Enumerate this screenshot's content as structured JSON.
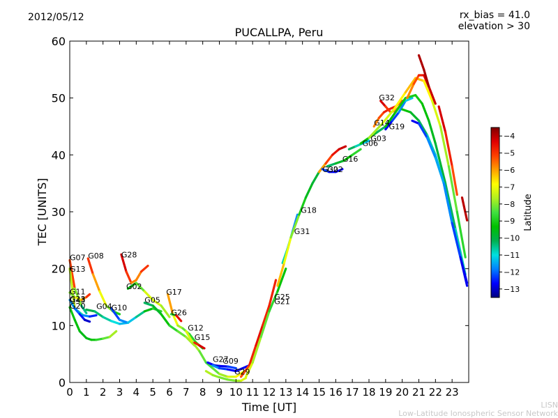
{
  "header": {
    "date": "2012/05/12",
    "title": "PUCALLPA, Peru",
    "rx_bias": "rx_bias = 41.0",
    "elevation": "elevation > 30"
  },
  "credit": {
    "line1": "LISN",
    "line2": "Low-Latitude Ionospheric Sensor Network"
  },
  "chart_data": {
    "type": "scatter",
    "xlabel": "Time [UT]",
    "ylabel": "TEC [UNITS]",
    "xlim": [
      0,
      24
    ],
    "ylim": [
      0,
      60
    ],
    "xticks": [
      0,
      1,
      2,
      3,
      4,
      5,
      6,
      7,
      8,
      9,
      10,
      11,
      12,
      13,
      14,
      15,
      16,
      17,
      18,
      19,
      20,
      21,
      22,
      23
    ],
    "yticks": [
      0,
      10,
      20,
      30,
      40,
      50,
      60
    ],
    "colorbar": {
      "label": "Latitude",
      "range": [
        -13.5,
        -3.5
      ],
      "ticks": [
        -4,
        -5,
        -6,
        -7,
        -8,
        -9,
        -10,
        -11,
        -12,
        -13
      ],
      "colormap": [
        "#00007f",
        "#0000ff",
        "#0080ff",
        "#00e0e0",
        "#00b050",
        "#00c000",
        "#40e040",
        "#b0f020",
        "#ffff00",
        "#ffa000",
        "#ff4000",
        "#e00000",
        "#800000"
      ]
    },
    "series": [
      {
        "name": "G07",
        "x": [
          0.0,
          0.3,
          0.7,
          1.0
        ],
        "y": [
          21.5,
          16.5,
          13.5,
          12.2
        ],
        "lat": [
          -3.8,
          -6.5,
          -9.5,
          -11.5
        ]
      },
      {
        "name": "G13",
        "x": [
          0.0,
          0.3,
          0.8,
          1.2,
          1.6
        ],
        "y": [
          20.0,
          13.0,
          11.8,
          11.6,
          11.8
        ],
        "lat": [
          -5.0,
          -10.0,
          -11.5,
          -12.0,
          -12.8
        ]
      },
      {
        "name": "G11",
        "x": [
          0.0,
          0.3,
          0.7,
          1.0,
          1.2
        ],
        "y": [
          15.8,
          15.0,
          14.5,
          15.0,
          15.5
        ],
        "lat": [
          -8.5,
          -7.5,
          -6.5,
          -5.5,
          -4.5
        ]
      },
      {
        "name": "G23",
        "x": [
          0.0,
          0.3,
          0.6,
          0.9,
          1.2
        ],
        "y": [
          14.5,
          13.0,
          12.0,
          11.0,
          10.7
        ],
        "lat": [
          -11.5,
          -11.8,
          -12.2,
          -12.8,
          -13.2
        ]
      },
      {
        "name": "G20",
        "x": [
          0.0,
          0.3,
          0.6,
          1.0,
          1.3,
          1.6,
          2.0,
          2.4,
          2.8
        ],
        "y": [
          13.2,
          11.0,
          9.0,
          7.8,
          7.5,
          7.5,
          7.7,
          8.0,
          9.0
        ],
        "lat": [
          -9.0,
          -9.3,
          -9.5,
          -9.6,
          -9.5,
          -9.0,
          -8.5,
          -8.0,
          -7.5
        ]
      },
      {
        "name": "G08",
        "x": [
          1.1,
          1.4,
          1.8,
          2.2,
          2.6,
          3.0
        ],
        "y": [
          21.8,
          19.0,
          16.0,
          13.5,
          12.5,
          12.0
        ],
        "lat": [
          -4.5,
          -5.5,
          -6.5,
          -7.5,
          -8.5,
          -9.5
        ]
      },
      {
        "name": "G04",
        "x": [
          1.0,
          1.5,
          2.0,
          2.5,
          3.0,
          3.5
        ],
        "y": [
          12.8,
          12.5,
          11.5,
          10.8,
          10.3,
          10.5
        ],
        "lat": [
          -10.0,
          -10.2,
          -10.5,
          -10.8,
          -11.2,
          -11.5
        ]
      },
      {
        "name": "G10",
        "x": [
          2.5,
          3.0,
          3.5,
          4.0,
          4.5,
          5.0,
          5.5
        ],
        "y": [
          13.0,
          11.0,
          10.5,
          11.5,
          12.5,
          13.0,
          12.5
        ],
        "lat": [
          -12.5,
          -12.0,
          -11.5,
          -11.0,
          -10.0,
          -9.0,
          -8.5
        ]
      },
      {
        "name": "G28",
        "x": [
          3.1,
          3.4,
          3.7,
          4.0,
          4.3,
          4.7
        ],
        "y": [
          22.5,
          19.5,
          17.5,
          18.0,
          19.5,
          20.5
        ],
        "lat": [
          -4.0,
          -4.5,
          -5.5,
          -6.0,
          -5.5,
          -4.5
        ]
      },
      {
        "name": "G02",
        "x": [
          3.5,
          4.0,
          4.5,
          5.0,
          5.5,
          6.0
        ],
        "y": [
          16.5,
          17.5,
          16.0,
          14.5,
          13.5,
          11.5
        ],
        "lat": [
          -10.0,
          -9.0,
          -7.5,
          -7.0,
          -7.5,
          -8.0
        ]
      },
      {
        "name": "G05",
        "x": [
          4.5,
          5.0,
          5.5,
          6.0,
          6.5,
          7.0,
          7.5
        ],
        "y": [
          14.0,
          13.5,
          12.0,
          10.0,
          9.0,
          8.0,
          6.5
        ],
        "lat": [
          -10.5,
          -10.0,
          -9.5,
          -9.0,
          -8.5,
          -8.0,
          -7.5
        ]
      },
      {
        "name": "G17",
        "x": [
          5.9,
          6.2,
          6.5,
          6.8,
          7.2,
          7.6,
          8.0
        ],
        "y": [
          15.5,
          12.0,
          10.0,
          9.5,
          8.5,
          7.0,
          6.0
        ],
        "lat": [
          -5.5,
          -6.5,
          -7.5,
          -8.0,
          -8.5,
          -9.0,
          -9.5
        ]
      },
      {
        "name": "G26",
        "x": [
          6.1,
          6.4,
          6.7
        ],
        "y": [
          12.0,
          11.8,
          10.8
        ],
        "lat": [
          -12.5,
          -5.0,
          -4.0
        ]
      },
      {
        "name": "G12",
        "x": [
          7.0,
          7.4,
          7.8,
          8.2,
          8.6,
          9.0,
          9.5,
          10.0,
          10.5
        ],
        "y": [
          9.0,
          7.0,
          5.5,
          3.5,
          2.5,
          1.5,
          1.0,
          1.0,
          2.0
        ],
        "lat": [
          -7.0,
          -7.5,
          -8.0,
          -8.5,
          -8.5,
          -8.0,
          -7.5,
          -7.0,
          -6.5
        ]
      },
      {
        "name": "G15",
        "x": [
          7.5,
          7.8,
          8.1
        ],
        "y": [
          7.0,
          6.5,
          6.0
        ],
        "lat": [
          -5.0,
          -4.5,
          -4.0
        ]
      },
      {
        "name": "G27",
        "x": [
          8.3,
          8.7,
          9.0,
          9.5,
          10.0
        ],
        "y": [
          3.5,
          3.0,
          2.9,
          2.8,
          2.5
        ],
        "lat": [
          -12.5,
          -12.8,
          -13.0,
          -12.5,
          -12.0
        ]
      },
      {
        "name": "G09",
        "x": [
          8.6,
          9.0,
          9.5,
          10.0,
          10.4,
          10.8
        ],
        "y": [
          3.0,
          2.5,
          2.3,
          2.0,
          2.5,
          3.0
        ],
        "lat": [
          -11.5,
          -12.0,
          -12.5,
          -12.8,
          -13.0,
          -12.5
        ]
      },
      {
        "name": "G29",
        "x": [
          8.2,
          8.6,
          9.0,
          9.5,
          10.0,
          10.3,
          10.6
        ],
        "y": [
          2.0,
          1.3,
          0.9,
          0.5,
          0.3,
          0.3,
          0.8
        ],
        "lat": [
          -7.5,
          -7.8,
          -8.0,
          -8.2,
          -8.0,
          -7.5,
          -7.0
        ]
      },
      {
        "name": "G25",
        "x": [
          10.3,
          10.8,
          11.2,
          11.6,
          12.0,
          12.4
        ],
        "y": [
          1.0,
          3.0,
          6.5,
          10.0,
          13.5,
          18.0
        ],
        "lat": [
          -5.5,
          -5.0,
          -4.5,
          -4.5,
          -5.0,
          -4.5
        ]
      },
      {
        "name": "G21",
        "x": [
          10.6,
          11.0,
          11.5,
          12.0,
          12.5,
          13.0
        ],
        "y": [
          1.0,
          3.5,
          8.0,
          12.5,
          16.0,
          20.0
        ],
        "lat": [
          -7.0,
          -7.5,
          -8.0,
          -8.5,
          -9.0,
          -9.5
        ]
      },
      {
        "name": "G31",
        "x": [
          12.8,
          13.1,
          13.4,
          13.7
        ],
        "y": [
          21.0,
          23.5,
          26.5,
          29.5
        ],
        "lat": [
          -10.5,
          -11.0,
          -11.5,
          -12.0
        ]
      },
      {
        "name": "G18",
        "x": [
          12.5,
          12.9,
          13.3,
          13.8,
          14.2,
          14.6,
          15.0,
          15.4
        ],
        "y": [
          17.0,
          21.0,
          25.5,
          29.5,
          32.5,
          35.0,
          37.0,
          38.5
        ],
        "lat": [
          -6.0,
          -6.5,
          -7.5,
          -8.5,
          -9.5,
          -9.8,
          -10.0,
          -10.2
        ]
      },
      {
        "name": "G30",
        "x": [
          15.0,
          15.4,
          15.8,
          16.2,
          16.6
        ],
        "y": [
          37.0,
          38.5,
          40.0,
          41.0,
          41.5
        ],
        "lat": [
          -6.5,
          -5.5,
          -4.8,
          -4.3,
          -4.0
        ]
      },
      {
        "name": "G22",
        "x": [
          15.2,
          15.6,
          16.0,
          16.4
        ],
        "y": [
          37.5,
          37.0,
          37.0,
          37.5
        ],
        "lat": [
          -12.0,
          -12.5,
          -12.8,
          -12.5
        ]
      },
      {
        "name": "G16",
        "x": [
          15.5,
          16.0,
          16.5,
          17.0,
          17.5
        ],
        "y": [
          38.0,
          38.5,
          39.0,
          40.0,
          41.0
        ],
        "lat": [
          -10.5,
          -10.0,
          -9.5,
          -9.0,
          -8.5
        ]
      },
      {
        "name": "G06",
        "x": [
          16.8,
          17.2,
          17.6,
          18.0
        ],
        "y": [
          41.0,
          41.5,
          42.0,
          42.5
        ],
        "lat": [
          -10.0,
          -10.5,
          -11.0,
          -11.5
        ]
      },
      {
        "name": "G03",
        "x": [
          17.5,
          18.0,
          18.5,
          19.0
        ],
        "y": [
          42.0,
          43.0,
          44.0,
          45.0
        ],
        "lat": [
          -9.0,
          -9.5,
          -10.0,
          -10.5
        ]
      },
      {
        "name": "G14",
        "x": [
          18.3,
          18.6,
          18.9,
          19.2,
          19.6,
          20.0
        ],
        "y": [
          45.0,
          46.5,
          47.5,
          48.0,
          48.5,
          49.5
        ],
        "lat": [
          -6.0,
          -5.5,
          -5.0,
          -4.5,
          -5.0,
          -5.5
        ]
      },
      {
        "name": "G32",
        "x": [
          18.7,
          19.0,
          19.3,
          19.6,
          20.0
        ],
        "y": [
          49.5,
          48.5,
          47.5,
          47.8,
          49.0
        ],
        "lat": [
          -4.0,
          -4.5,
          -5.5,
          -6.0,
          -5.5
        ]
      },
      {
        "name": "G19",
        "x": [
          19.0,
          19.4,
          19.8,
          20.2,
          20.6
        ],
        "y": [
          44.5,
          46.0,
          47.5,
          49.5,
          50.0
        ],
        "lat": [
          -13.0,
          -12.5,
          -12.0,
          -11.5,
          -11.0
        ]
      },
      {
        "name": "",
        "x": [
          18.0,
          18.8,
          19.5,
          20.2,
          20.8,
          21.3,
          21.8,
          22.3,
          22.8,
          23.3,
          23.8
        ],
        "y": [
          43.0,
          45.5,
          48.0,
          51.0,
          53.5,
          53.0,
          49.5,
          45.0,
          38.0,
          30.0,
          22.0
        ],
        "lat": [
          -8.0,
          -7.5,
          -7.0,
          -6.5,
          -6.0,
          -6.5,
          -7.0,
          -7.5,
          -8.0,
          -8.5,
          -9.0
        ]
      },
      {
        "name": "",
        "x": [
          19.0,
          19.6,
          20.2,
          20.8,
          21.2,
          21.6,
          22.0,
          22.6,
          23.2,
          23.8
        ],
        "y": [
          45.0,
          47.5,
          50.0,
          50.5,
          49.0,
          46.0,
          42.0,
          35.0,
          27.0,
          19.0
        ],
        "lat": [
          -9.5,
          -9.3,
          -9.0,
          -9.0,
          -9.2,
          -9.5,
          -9.8,
          -10.0,
          -10.5,
          -11.0
        ]
      },
      {
        "name": "",
        "x": [
          20.0,
          20.5,
          21.0,
          21.5,
          22.0,
          22.5,
          23.0,
          23.5,
          23.9
        ],
        "y": [
          48.0,
          47.5,
          46.0,
          43.5,
          40.0,
          35.0,
          28.0,
          22.0,
          17.5
        ],
        "lat": [
          -9.0,
          -9.5,
          -10.0,
          -10.5,
          -11.0,
          -11.5,
          -12.0,
          -12.5,
          -13.0
        ]
      },
      {
        "name": "",
        "x": [
          20.6,
          21.0,
          21.5,
          22.0,
          22.5,
          23.0,
          23.5,
          23.9
        ],
        "y": [
          46.0,
          45.5,
          43.0,
          39.5,
          35.0,
          28.0,
          22.0,
          17.0
        ],
        "lat": [
          -13.0,
          -12.5,
          -12.0,
          -11.5,
          -11.5,
          -12.0,
          -12.5,
          -13.0
        ]
      },
      {
        "name": "",
        "x": [
          20.3,
          20.7,
          21.0,
          21.3,
          21.6,
          22.0
        ],
        "y": [
          50.0,
          52.5,
          54.0,
          54.0,
          52.0,
          49.0
        ],
        "lat": [
          -6.0,
          -5.5,
          -5.0,
          -4.5,
          -4.3,
          -4.0
        ]
      },
      {
        "name": "",
        "x": [
          21.0,
          21.3,
          21.6
        ],
        "y": [
          57.5,
          55.0,
          52.0
        ],
        "lat": [
          -4.0,
          -3.8,
          -3.8
        ]
      },
      {
        "name": "",
        "x": [
          22.2,
          22.6,
          23.0,
          23.3
        ],
        "y": [
          48.5,
          44.0,
          38.0,
          33.0
        ],
        "lat": [
          -4.0,
          -4.5,
          -5.0,
          -5.5
        ]
      },
      {
        "name": "",
        "x": [
          23.6,
          23.9
        ],
        "y": [
          32.5,
          28.5
        ],
        "lat": [
          -4.0,
          -4.0
        ]
      }
    ],
    "annotations": [
      {
        "text": "G07",
        "x": 0.0,
        "y": 21.5
      },
      {
        "text": "G13",
        "x": 0.0,
        "y": 19.5
      },
      {
        "text": "G08",
        "x": 1.1,
        "y": 21.8
      },
      {
        "text": "G28",
        "x": 3.1,
        "y": 22.0
      },
      {
        "text": "G11",
        "x": 0.0,
        "y": 15.5
      },
      {
        "text": "G23",
        "x": 0.0,
        "y": 14.2
      },
      {
        "text": "G43",
        "x": 0.0,
        "y": 14.0
      },
      {
        "text": "G20",
        "x": 0.0,
        "y": 13.0
      },
      {
        "text": "G04",
        "x": 1.6,
        "y": 12.9
      },
      {
        "text": "G10",
        "x": 2.5,
        "y": 12.7
      },
      {
        "text": "G02",
        "x": 3.4,
        "y": 16.4
      },
      {
        "text": "G05",
        "x": 4.5,
        "y": 14.0
      },
      {
        "text": "G17",
        "x": 5.8,
        "y": 15.4
      },
      {
        "text": "G26",
        "x": 6.1,
        "y": 11.8
      },
      {
        "text": "G12",
        "x": 7.1,
        "y": 9.1
      },
      {
        "text": "G15",
        "x": 7.5,
        "y": 7.5
      },
      {
        "text": "G27",
        "x": 8.6,
        "y": 3.6
      },
      {
        "text": "G09",
        "x": 9.2,
        "y": 3.3
      },
      {
        "text": "G29",
        "x": 9.9,
        "y": 1.4
      },
      {
        "text": "G25",
        "x": 12.3,
        "y": 14.6
      },
      {
        "text": "G21",
        "x": 12.3,
        "y": 13.8
      },
      {
        "text": "G31",
        "x": 13.5,
        "y": 26.1
      },
      {
        "text": "G18",
        "x": 13.9,
        "y": 29.8
      },
      {
        "text": "G30",
        "x": 15.2,
        "y": 37.0
      },
      {
        "text": "G22",
        "x": 15.5,
        "y": 37.0
      },
      {
        "text": "G16",
        "x": 16.4,
        "y": 38.8
      },
      {
        "text": "G06",
        "x": 17.6,
        "y": 41.6
      },
      {
        "text": "G03",
        "x": 18.1,
        "y": 42.4
      },
      {
        "text": "G14",
        "x": 18.3,
        "y": 45.2
      },
      {
        "text": "G32",
        "x": 18.6,
        "y": 49.6
      },
      {
        "text": "G19",
        "x": 19.2,
        "y": 44.5
      }
    ]
  }
}
